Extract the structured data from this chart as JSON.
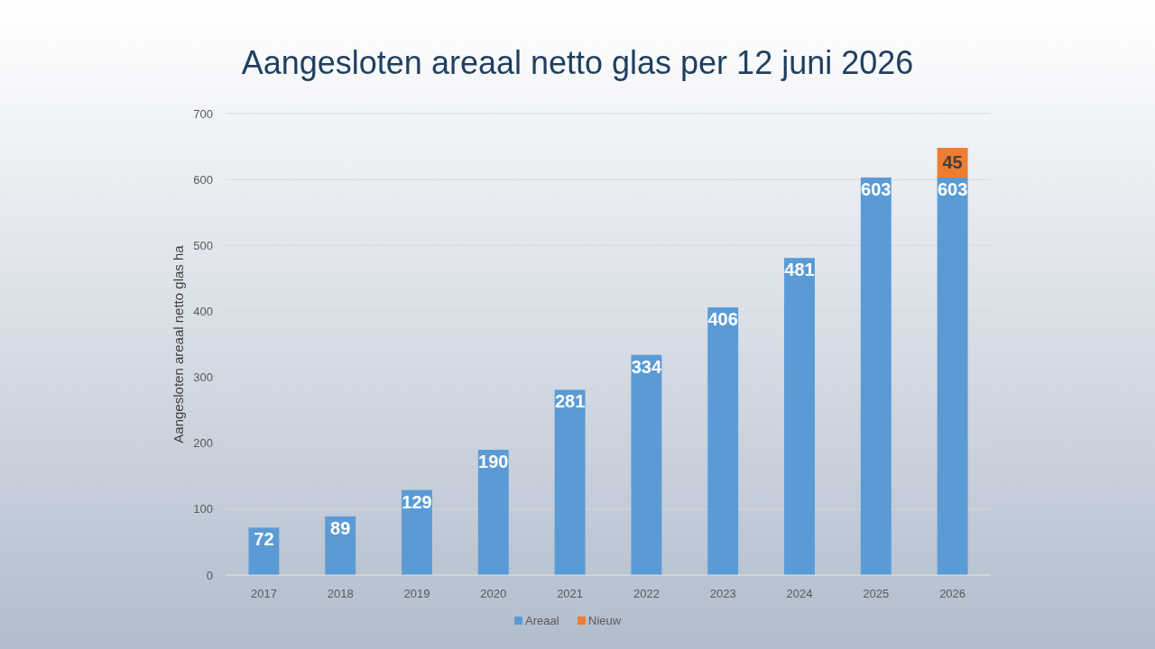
{
  "chart_data": {
    "type": "bar",
    "title": "Aangesloten areaal netto glas per 12 juni 2026",
    "ylabel": "Aangesloten areaal netto glas ha",
    "categories": [
      "2017",
      "2018",
      "2019",
      "2020",
      "2021",
      "2022",
      "2023",
      "2024",
      "2025",
      "2026"
    ],
    "series": [
      {
        "name": "Areaal",
        "color": "#5b9bd5",
        "values": [
          72,
          89,
          129,
          190,
          281,
          334,
          406,
          481,
          603,
          603
        ]
      },
      {
        "name": "Nieuw",
        "color": "#ed7d31",
        "values": [
          null,
          null,
          null,
          null,
          null,
          null,
          null,
          null,
          null,
          45
        ]
      }
    ],
    "stacked": true,
    "ylim": [
      0,
      700
    ],
    "yticks": [
      0,
      100,
      200,
      300,
      400,
      500,
      600,
      700
    ],
    "grid": "y",
    "legend": "bottom",
    "data_labels": true
  }
}
